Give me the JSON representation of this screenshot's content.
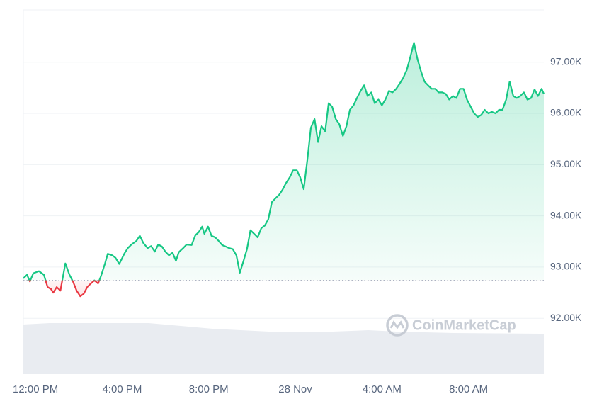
{
  "chart_data": {
    "type": "line",
    "watermark": "CoinMarketCap",
    "x": [
      -0.56,
      -0.39,
      -0.26,
      -0.1,
      0.16,
      0.39,
      0.56,
      0.72,
      0.82,
      0.98,
      1.15,
      1.38,
      1.57,
      1.74,
      1.9,
      2.07,
      2.23,
      2.39,
      2.56,
      2.72,
      2.89,
      3.02,
      3.21,
      3.34,
      3.54,
      3.7,
      3.87,
      4.1,
      4.26,
      4.43,
      4.66,
      4.82,
      4.98,
      5.18,
      5.34,
      5.51,
      5.67,
      5.84,
      6.0,
      6.16,
      6.33,
      6.49,
      6.62,
      6.82,
      6.98,
      7.21,
      7.38,
      7.54,
      7.7,
      7.8,
      7.97,
      8.13,
      8.3,
      8.46,
      8.62,
      8.79,
      8.95,
      9.11,
      9.28,
      9.44,
      9.61,
      9.77,
      9.93,
      10.1,
      10.26,
      10.43,
      10.59,
      10.75,
      10.92,
      11.08,
      11.25,
      11.41,
      11.57,
      11.74,
      11.9,
      12.07,
      12.23,
      12.39,
      12.56,
      12.72,
      12.89,
      13.05,
      13.21,
      13.38,
      13.54,
      13.7,
      13.87,
      14.03,
      14.2,
      14.36,
      14.52,
      14.69,
      14.85,
      15.02,
      15.18,
      15.34,
      15.51,
      15.67,
      15.84,
      16.0,
      16.16,
      16.33,
      16.49,
      16.66,
      16.82,
      16.98,
      17.15,
      17.31,
      17.48,
      17.64,
      17.8,
      17.97,
      18.13,
      18.3,
      18.46,
      18.62,
      18.79,
      18.95,
      19.11,
      19.28,
      19.44,
      19.61,
      19.77,
      19.93,
      20.1,
      20.26,
      20.43,
      20.59,
      20.75,
      20.92,
      21.08,
      21.25,
      21.41,
      21.57,
      21.74,
      21.9,
      22.07,
      22.23,
      22.39,
      22.56,
      22.72,
      22.89,
      23.05,
      23.21,
      23.38,
      23.48
    ],
    "values": [
      92780,
      92850,
      92720,
      92880,
      92920,
      92850,
      92610,
      92570,
      92500,
      92610,
      92540,
      93070,
      92850,
      92710,
      92540,
      92430,
      92480,
      92610,
      92680,
      92740,
      92680,
      92820,
      93070,
      93260,
      93230,
      93180,
      93060,
      93260,
      93370,
      93440,
      93510,
      93610,
      93470,
      93370,
      93410,
      93300,
      93440,
      93400,
      93300,
      93230,
      93280,
      93120,
      93290,
      93370,
      93440,
      93430,
      93620,
      93680,
      93790,
      93650,
      93790,
      93610,
      93580,
      93510,
      93430,
      93400,
      93370,
      93350,
      93230,
      92890,
      93120,
      93350,
      93720,
      93650,
      93580,
      93760,
      93810,
      93930,
      94270,
      94340,
      94410,
      94510,
      94640,
      94750,
      94890,
      94890,
      94750,
      94520,
      95100,
      95720,
      95890,
      95440,
      95750,
      95650,
      96200,
      96130,
      95890,
      95790,
      95560,
      95750,
      96070,
      96160,
      96300,
      96440,
      96550,
      96340,
      96410,
      96200,
      96270,
      96160,
      96270,
      96440,
      96410,
      96480,
      96580,
      96690,
      96850,
      97100,
      97380,
      97070,
      96830,
      96620,
      96550,
      96480,
      96480,
      96410,
      96410,
      96380,
      96270,
      96340,
      96300,
      96480,
      96480,
      96270,
      96130,
      96000,
      95930,
      95970,
      96070,
      96000,
      96030,
      96000,
      96070,
      96070,
      96270,
      96620,
      96340,
      96300,
      96340,
      96410,
      96270,
      96300,
      96470,
      96340,
      96480,
      96380
    ],
    "baseline": 92740,
    "color": "#16c784",
    "down_color": "#ea3943",
    "xlim": [
      -0.56,
      23.48
    ],
    "xticks": [
      {
        "value": 0,
        "label": "12:00 PM"
      },
      {
        "value": 4,
        "label": "4:00 PM"
      },
      {
        "value": 8,
        "label": "8:00 PM"
      },
      {
        "value": 12,
        "label": "28 Nov"
      },
      {
        "value": 16,
        "label": "4:00 AM"
      },
      {
        "value": 20,
        "label": "8:00 AM"
      }
    ],
    "ylim": [
      90910,
      98020
    ],
    "yticks": [
      {
        "value": 92000,
        "label": "92.00K"
      },
      {
        "value": 93000,
        "label": "93.00K"
      },
      {
        "value": 94000,
        "label": "94.00K"
      },
      {
        "value": 95000,
        "label": "95.00K"
      },
      {
        "value": 96000,
        "label": "96.00K"
      },
      {
        "value": 97000,
        "label": "97.00K"
      }
    ],
    "grid": true
  }
}
